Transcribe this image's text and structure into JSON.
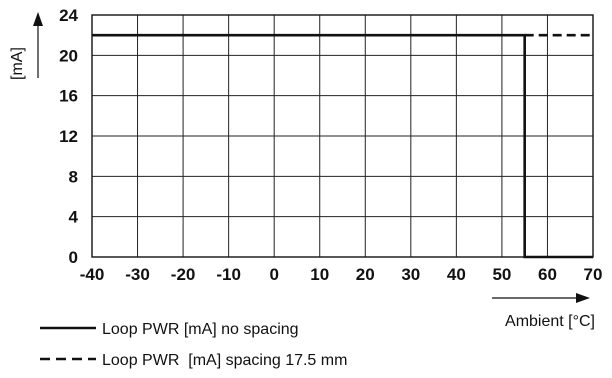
{
  "chart_data": {
    "type": "line",
    "ylabel": "[mA]",
    "xlabel": "Ambient [°C]",
    "xlim": [
      -40,
      70
    ],
    "ylim": [
      0,
      24
    ],
    "x_ticks": [
      "-40",
      "-30",
      "-20",
      "-10",
      "0",
      "10",
      "20",
      "30",
      "40",
      "50",
      "60",
      "70"
    ],
    "y_ticks": [
      "0",
      "4",
      "8",
      "12",
      "16",
      "20",
      "24"
    ],
    "grid": true,
    "legend_position": "bottom-left",
    "series": [
      {
        "name": "Loop PWR [mA] no spacing",
        "style": "solid",
        "x": [
          -40,
          55,
          55,
          70
        ],
        "y": [
          22,
          22,
          0,
          0
        ]
      },
      {
        "name": "Loop PWR  [mA] spacing 17.5 mm",
        "style": "dashed",
        "x": [
          55,
          70
        ],
        "y": [
          22,
          22
        ]
      }
    ]
  }
}
